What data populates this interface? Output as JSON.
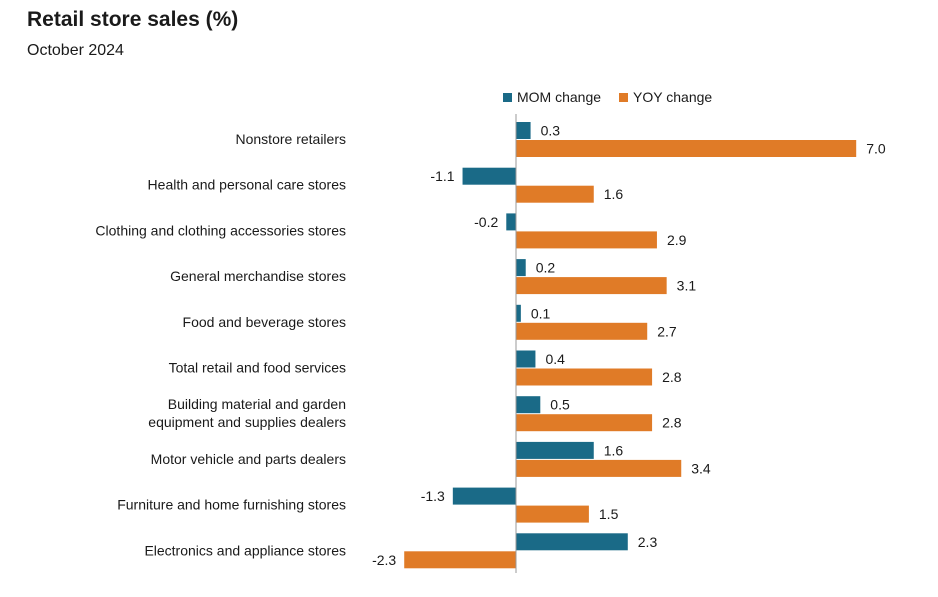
{
  "chart_data": {
    "type": "bar",
    "orientation": "horizontal",
    "title": "Retail store sales (%)",
    "subtitle": "October 2024",
    "categories": [
      [
        "Nonstore retailers"
      ],
      [
        "Health and personal care stores"
      ],
      [
        "Clothing and clothing accessories stores"
      ],
      [
        "General merchandise stores"
      ],
      [
        "Food and beverage stores"
      ],
      [
        "Total retail and food services"
      ],
      [
        "Building material and garden",
        "equipment and supplies dealers"
      ],
      [
        "Motor vehicle and parts dealers"
      ],
      [
        "Furniture and home furnishing stores"
      ],
      [
        "Electronics and appliance stores"
      ]
    ],
    "series": [
      {
        "name": "MOM change",
        "color": "#1a6a87",
        "values": [
          0.3,
          -1.1,
          -0.2,
          0.2,
          0.1,
          0.4,
          0.5,
          1.6,
          -1.3,
          2.3
        ]
      },
      {
        "name": "YOY change",
        "color": "#e07b27",
        "values": [
          7.0,
          1.6,
          2.9,
          3.1,
          2.7,
          2.8,
          2.8,
          3.4,
          1.5,
          -2.3
        ]
      }
    ],
    "xlim": [
      -2.3,
      7.0
    ],
    "legend_position": "top",
    "grid": false
  }
}
